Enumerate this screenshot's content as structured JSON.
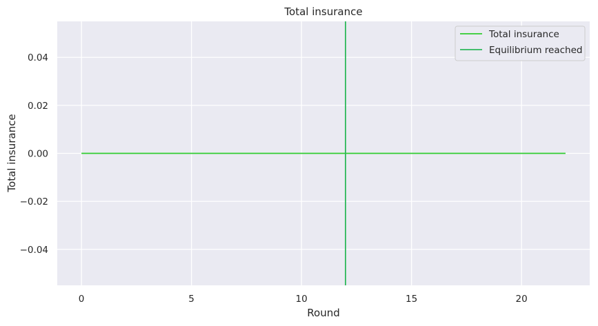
{
  "chart_data": {
    "type": "line",
    "title": "Total insurance",
    "xlabel": "Round",
    "ylabel": "Total insurance",
    "xlim": [
      -1.1,
      23.1
    ],
    "ylim": [
      -0.055,
      0.055
    ],
    "x_ticks": [
      0,
      5,
      10,
      15,
      20
    ],
    "x_tick_labels": [
      "0",
      "5",
      "10",
      "15",
      "20"
    ],
    "y_ticks": [
      -0.04,
      -0.02,
      0.0,
      0.02,
      0.04
    ],
    "y_tick_labels": [
      "−0.04",
      "−0.02",
      "0.00",
      "0.02",
      "0.04"
    ],
    "grid": true,
    "legend_position": "top-right",
    "series": [
      {
        "name": "Total insurance",
        "color": "#2ecc2e",
        "x": [
          0,
          1,
          2,
          3,
          4,
          5,
          6,
          7,
          8,
          9,
          10,
          11,
          12,
          13,
          14,
          15,
          16,
          17,
          18,
          19,
          20,
          21,
          22
        ],
        "y": [
          0,
          0,
          0,
          0,
          0,
          0,
          0,
          0,
          0,
          0,
          0,
          0,
          0,
          0,
          0,
          0,
          0,
          0,
          0,
          0,
          0,
          0,
          0
        ]
      }
    ],
    "vlines": [
      {
        "name": "Equilibrium reached",
        "color": "#2db85a",
        "x": 12
      }
    ],
    "colors": {
      "plot_background": "#eaeaf2",
      "grid": "#ffffff",
      "text": "#262626"
    }
  }
}
